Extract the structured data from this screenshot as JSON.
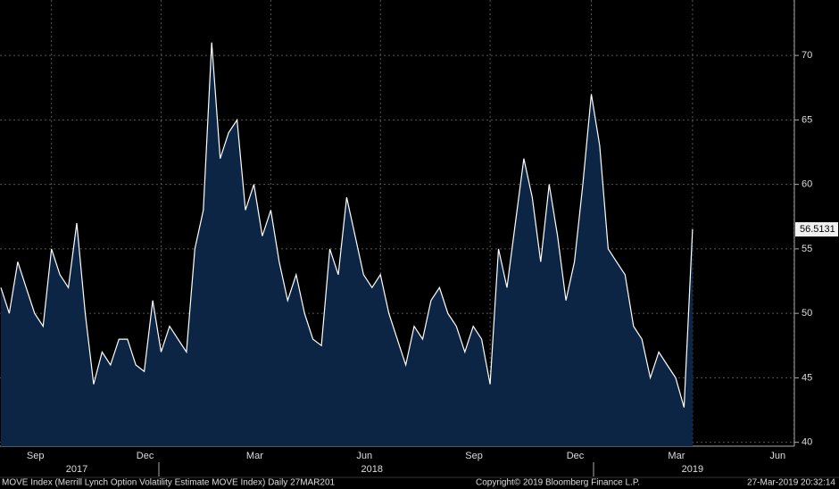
{
  "chart_data": {
    "type": "area",
    "categories": [
      null,
      null,
      null,
      null,
      null,
      null,
      "Sep",
      null,
      null,
      null,
      null,
      null,
      null,
      null,
      null,
      null,
      null,
      null,
      null,
      "Dec",
      null,
      null,
      null,
      null,
      null,
      null,
      null,
      null,
      null,
      null,
      null,
      null,
      "Mar",
      null,
      null,
      null,
      null,
      null,
      null,
      null,
      null,
      null,
      null,
      null,
      null,
      "Jun",
      null,
      null,
      null,
      null,
      null,
      null,
      null,
      null,
      null,
      null,
      null,
      null,
      "Sep",
      null,
      null,
      null,
      null,
      null,
      null,
      null,
      null,
      null,
      null,
      null,
      "Dec",
      null,
      null,
      null,
      null,
      null,
      null,
      null,
      null,
      null,
      null,
      null,
      "Mar",
      null,
      null,
      null,
      null,
      null,
      null,
      null,
      null,
      null,
      null,
      null,
      "Jun"
    ],
    "x_years": [
      null,
      null,
      null,
      null,
      null,
      null,
      null,
      null,
      null,
      "2017",
      null,
      null,
      null,
      null,
      null,
      null,
      null,
      null,
      null,
      null,
      null,
      null,
      null,
      null,
      null,
      null,
      null,
      null,
      null,
      null,
      null,
      null,
      null,
      null,
      null,
      null,
      null,
      null,
      null,
      null,
      null,
      null,
      null,
      null,
      "2018",
      null,
      null,
      null,
      null,
      null,
      null,
      null,
      null,
      null,
      null,
      null,
      null,
      null,
      null,
      null,
      null,
      null,
      null,
      null,
      null,
      null,
      null,
      null,
      null,
      null,
      null,
      null,
      null,
      null,
      null,
      null,
      null,
      null,
      null,
      null,
      null,
      null,
      "2019",
      null,
      null,
      null,
      null,
      null,
      null,
      null,
      null,
      null,
      null,
      null,
      null
    ],
    "series": [
      {
        "name": "MOVE Index",
        "color": "#ffffff",
        "fill": "#0d2545",
        "values": [
          52,
          50,
          54,
          52,
          50,
          49,
          55,
          53,
          52,
          57,
          50,
          44.5,
          47,
          46,
          48,
          48,
          46,
          45.5,
          51,
          47,
          49,
          48,
          47,
          55,
          58,
          71,
          62,
          64,
          65,
          58,
          60,
          56,
          58,
          54,
          51,
          53,
          50,
          48,
          47.5,
          55,
          53,
          59,
          56,
          53,
          52,
          53,
          50,
          48,
          46,
          49,
          48,
          51,
          52,
          50,
          49,
          47,
          49,
          48,
          44.5,
          55,
          52,
          57,
          62,
          59,
          54,
          60,
          56,
          51,
          54,
          60,
          67,
          63,
          55,
          54,
          53,
          49,
          48,
          45,
          47,
          46,
          45,
          42.7,
          56.5131,
          null,
          null,
          null,
          null,
          null,
          null,
          null,
          null,
          null,
          null,
          null,
          null
        ]
      }
    ],
    "ylim": [
      39.7,
      74.3
    ],
    "yticks": [
      40,
      45,
      50,
      55,
      60,
      65,
      70
    ],
    "grid": true,
    "footer": {
      "left": "MOVE Index (Merrill Lynch Option Volatility Estimate MOVE Index)  Daily 27MAR201",
      "center": "Copyright© 2019 Bloomberg Finance L.P.",
      "right": "27-Mar-2019 20:32:14"
    }
  }
}
